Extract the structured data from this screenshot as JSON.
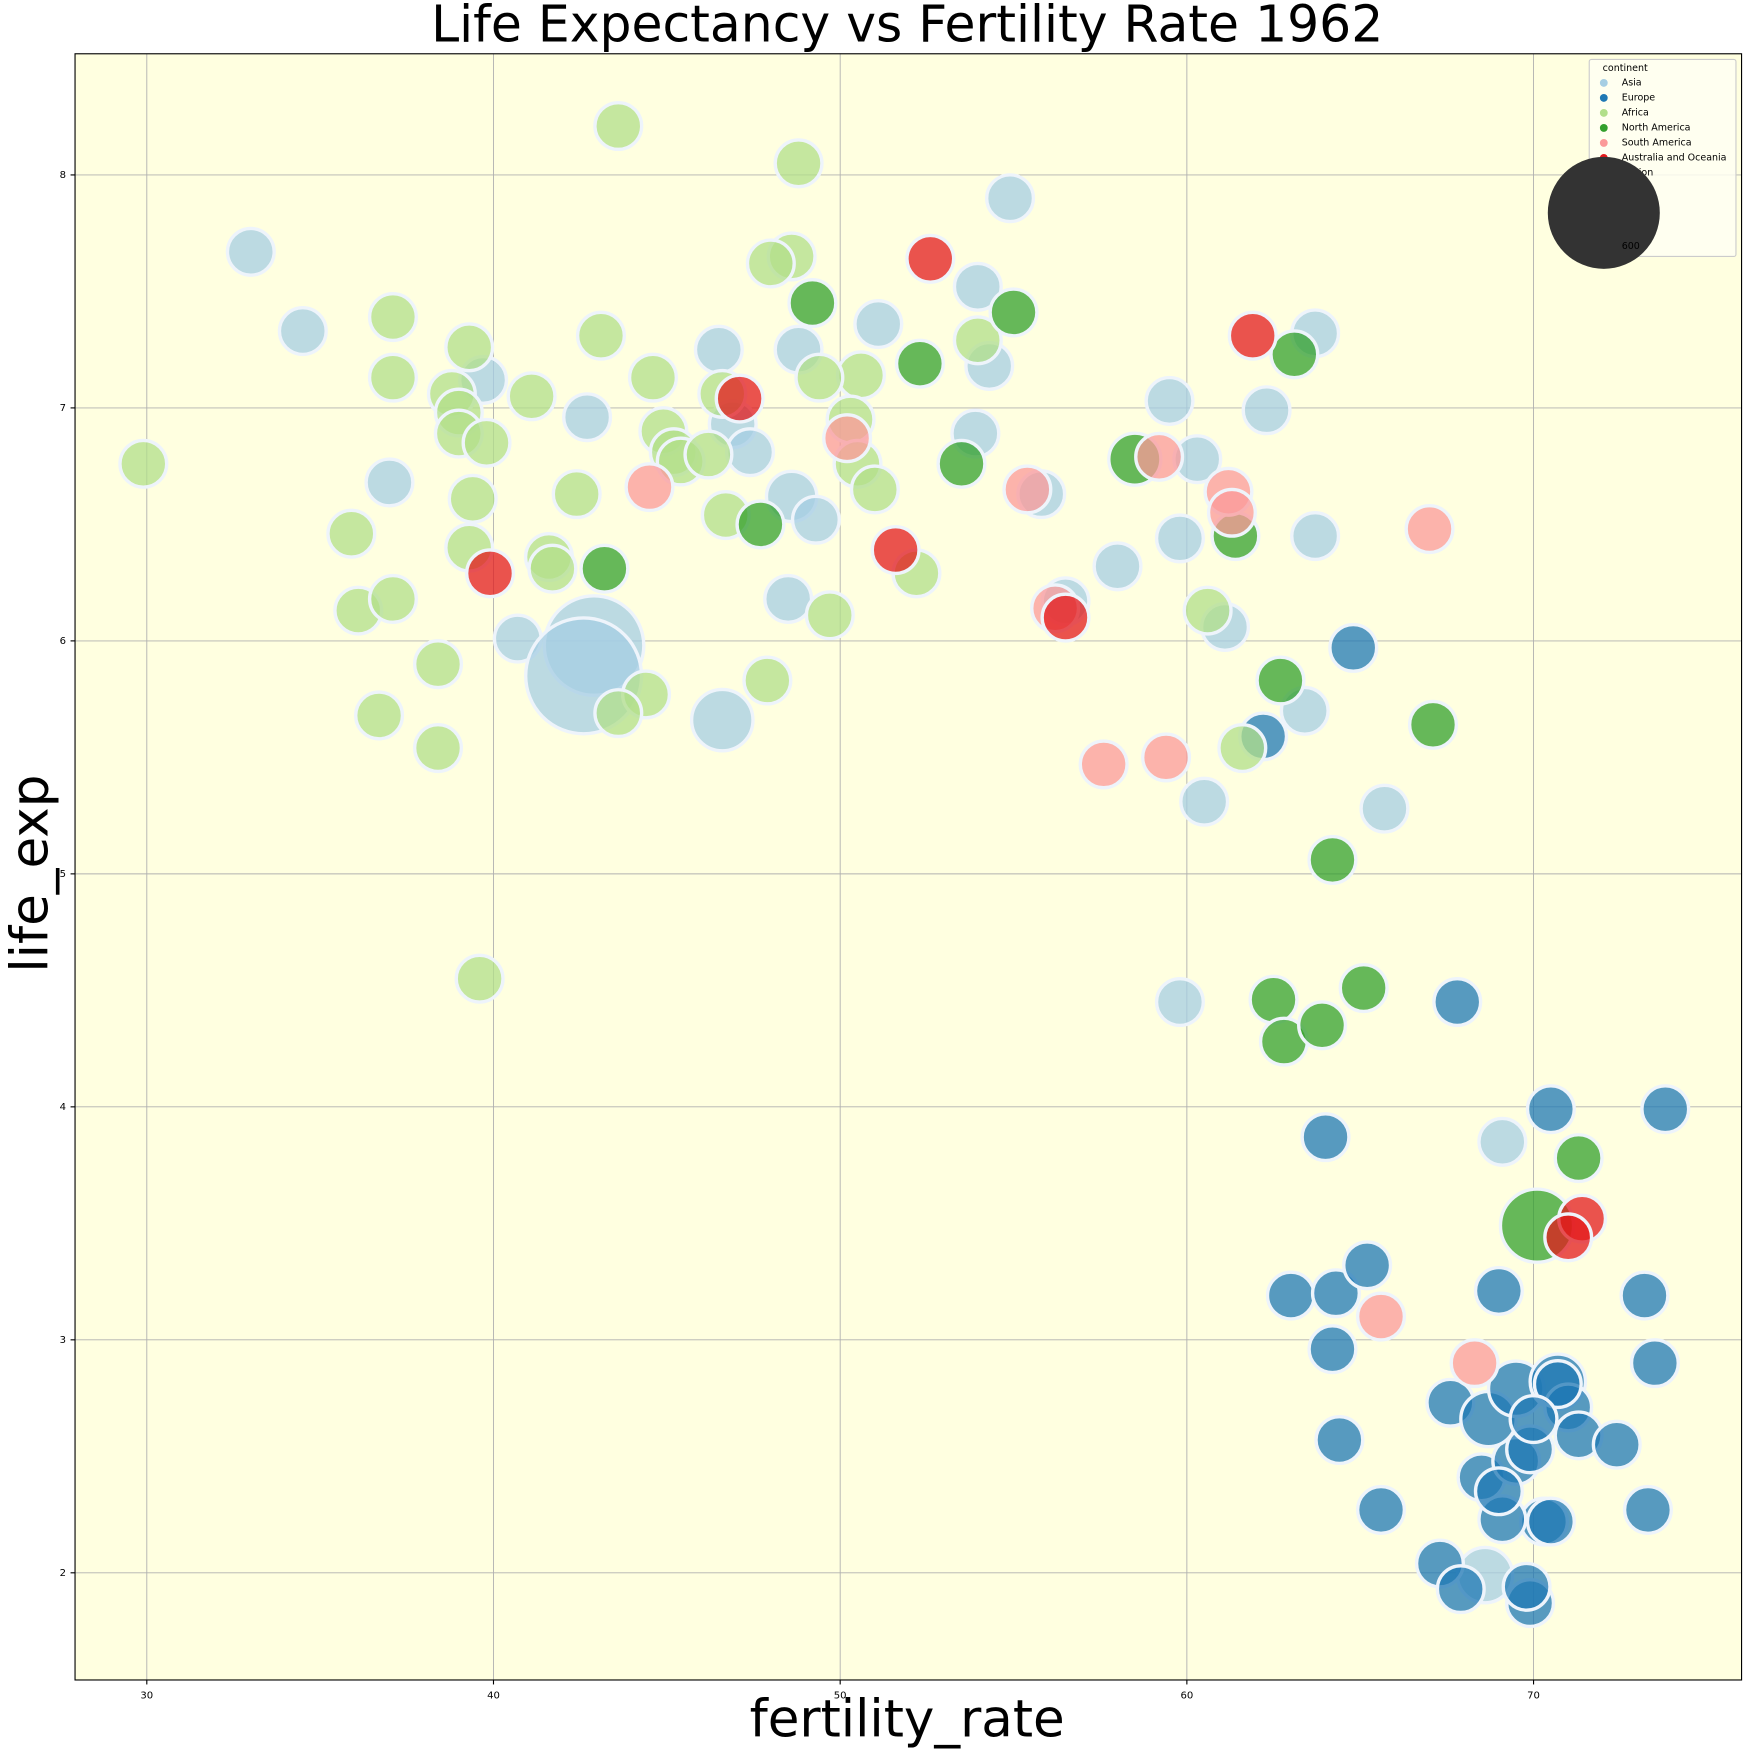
{
  "chart_data": {
    "type": "scatter",
    "title": "Life Expectancy vs Fertility Rate 1962",
    "x_label": "fertility_rate",
    "y_label": "life_exp",
    "xlim": [
      27.93,
      76.0
    ],
    "ylim": [
      1.54,
      8.52
    ],
    "xticks": [
      30,
      40,
      50,
      60,
      70
    ],
    "yticks": [
      2,
      3,
      4,
      5,
      6,
      7,
      8
    ],
    "grid": true,
    "background": "#ffffe0",
    "legend_title": "continent",
    "legend_position": "upper right",
    "size_legend": {
      "title": "population",
      "values": [
        600
      ],
      "color": "#333333"
    },
    "series": [
      {
        "name": "Asia",
        "color": "#a6cee3",
        "x": [
          33.0,
          34.5,
          39.7,
          37.0,
          42.7,
          46.5,
          48.8,
          51.1,
          54.9,
          53.97,
          54.3,
          53.9,
          59.5,
          60.3,
          62.3,
          63.7,
          59.8,
          63.7,
          58.0,
          55.8,
          56.5,
          61.1,
          63.4,
          60.5,
          65.7,
          59.8,
          69.1,
          68.6,
          40.7,
          46.6,
          48.6,
          49.3,
          48.5,
          46.9,
          47.4,
          42.9,
          42.6
        ],
        "y": [
          7.67,
          7.33,
          7.12,
          6.68,
          6.96,
          7.25,
          7.25,
          7.36,
          7.9,
          7.52,
          7.18,
          6.89,
          7.03,
          6.78,
          6.99,
          7.32,
          6.44,
          6.45,
          6.32,
          6.63,
          6.17,
          6.06,
          5.7,
          5.31,
          5.28,
          4.45,
          3.85,
          1.99,
          6.01,
          5.66,
          6.62,
          6.52,
          6.18,
          6.93,
          6.81,
          5.98,
          5.85
        ],
        "sizes": [
          10,
          10,
          10,
          10,
          10,
          10,
          10,
          10,
          10,
          10,
          10,
          10,
          10,
          10,
          10,
          10,
          10,
          10,
          10,
          10,
          10,
          10,
          10,
          10,
          10,
          10,
          10,
          60,
          10,
          100,
          30,
          10,
          10,
          10,
          10,
          450,
          650
        ]
      },
      {
        "name": "Europe",
        "color": "#1f78b4",
        "x": [
          64.8,
          62.2,
          67.8,
          64.0,
          70.5,
          73.8,
          73.2,
          73.5,
          63.0,
          64.3,
          65.2,
          69.0,
          64.2,
          67.6,
          64.4,
          65.6,
          67.3,
          67.9,
          69.9,
          69.8,
          70.3,
          69.1,
          68.5,
          69.5,
          69.9,
          69.0,
          68.7,
          69.5,
          70.7,
          71.0,
          71.3,
          72.4,
          73.3,
          70.5,
          70.7,
          70.0
        ],
        "y": [
          5.97,
          5.59,
          4.45,
          3.87,
          3.99,
          3.99,
          3.19,
          2.9,
          3.19,
          3.2,
          3.32,
          3.21,
          2.96,
          2.73,
          2.57,
          2.27,
          2.04,
          1.93,
          1.87,
          1.94,
          2.22,
          2.23,
          2.41,
          2.48,
          2.53,
          2.35,
          2.66,
          2.79,
          2.82,
          2.71,
          2.59,
          2.55,
          2.27,
          2.22,
          2.81,
          2.66
        ],
        "sizes": [
          10,
          10,
          10,
          10,
          10,
          10,
          10,
          10,
          10,
          10,
          10,
          10,
          10,
          10,
          10,
          10,
          10,
          10,
          10,
          10,
          10,
          10,
          10,
          10,
          10,
          10,
          60,
          60,
          60,
          10,
          10,
          10,
          10,
          10,
          10,
          10
        ]
      },
      {
        "name": "Africa",
        "color": "#b2df8a",
        "x": [
          29.9,
          43.6,
          48.8,
          48.6,
          48.0,
          37.1,
          43.1,
          39.3,
          37.1,
          41.1,
          44.6,
          38.8,
          39.0,
          39.0,
          39.8,
          50.6,
          49.4,
          50.3,
          44.9,
          45.2,
          45.4,
          46.2,
          50.5,
          51.0,
          46.6,
          39.4,
          42.4,
          35.9,
          39.3,
          41.6,
          41.7,
          36.1,
          37.1,
          46.7,
          52.2,
          49.7,
          53.97,
          60.6,
          38.4,
          47.9,
          44.4,
          43.6,
          36.7,
          38.4,
          61.6,
          39.6
        ],
        "y": [
          6.76,
          8.21,
          8.05,
          7.65,
          7.62,
          7.39,
          7.31,
          7.26,
          7.13,
          7.05,
          7.13,
          7.06,
          6.98,
          6.89,
          6.85,
          7.14,
          7.13,
          6.95,
          6.9,
          6.81,
          6.77,
          6.8,
          6.76,
          6.65,
          7.06,
          6.61,
          6.63,
          6.46,
          6.4,
          6.36,
          6.31,
          6.13,
          6.18,
          6.54,
          6.29,
          6.11,
          7.29,
          6.13,
          5.9,
          5.83,
          5.77,
          5.69,
          5.68,
          5.54,
          5.54,
          4.55
        ],
        "sizes": [
          10,
          10,
          10,
          10,
          10,
          10,
          10,
          10,
          10,
          10,
          10,
          10,
          10,
          10,
          10,
          10,
          10,
          10,
          10,
          10,
          10,
          10,
          10,
          10,
          10,
          10,
          10,
          10,
          10,
          10,
          10,
          10,
          10,
          10,
          10,
          10,
          10,
          10,
          10,
          10,
          10,
          10,
          10,
          10,
          10,
          10
        ]
      },
      {
        "name": "North America",
        "color": "#33a02c",
        "x": [
          49.2,
          55.0,
          52.3,
          63.1,
          53.5,
          58.5,
          47.7,
          43.2,
          61.4,
          62.7,
          67.1,
          64.2,
          65.1,
          62.5,
          62.8,
          63.9,
          71.3,
          70.1
        ],
        "y": [
          7.45,
          7.41,
          7.19,
          7.23,
          6.76,
          6.78,
          6.5,
          6.31,
          6.45,
          5.83,
          5.64,
          5.06,
          4.51,
          4.46,
          4.28,
          4.35,
          3.78,
          3.49
        ],
        "sizes": [
          10,
          10,
          10,
          10,
          10,
          40,
          10,
          10,
          10,
          10,
          10,
          10,
          10,
          10,
          10,
          10,
          10,
          190
        ]
      },
      {
        "name": "South America",
        "color": "#fb9a99",
        "x": [
          44.5,
          50.2,
          55.4,
          56.2,
          59.2,
          61.2,
          61.3,
          67.0,
          57.6,
          59.4,
          65.6,
          68.3
        ],
        "y": [
          6.66,
          6.87,
          6.65,
          6.14,
          6.79,
          6.64,
          6.55,
          6.48,
          5.47,
          5.5,
          3.1,
          2.9
        ],
        "sizes": [
          10,
          10,
          10,
          10,
          10,
          10,
          10,
          10,
          10,
          10,
          10,
          10
        ]
      },
      {
        "name": "Australia and Oceania",
        "color": "#e31a1c",
        "x": [
          52.6,
          61.9,
          47.1,
          51.6,
          39.9,
          56.5,
          71.4,
          71.0
        ],
        "y": [
          7.64,
          7.31,
          7.04,
          6.39,
          6.29,
          6.1,
          3.52,
          3.44
        ],
        "sizes": [
          10,
          10,
          10,
          10,
          10,
          10,
          10,
          10
        ]
      }
    ]
  }
}
